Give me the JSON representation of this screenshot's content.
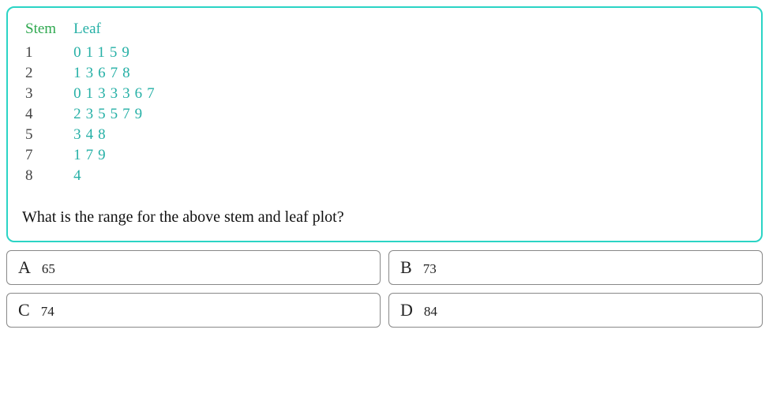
{
  "panel": {
    "border_color": "#2bd4c5"
  },
  "stemleaf": {
    "header": {
      "stem": "Stem",
      "leaf": "Leaf"
    },
    "header_color_stem": "#2ea84f",
    "header_color_leaf": "#26b0a6",
    "stem_color": "#444444",
    "leaf_color": "#26b0a6",
    "font_size": 19,
    "rows": [
      {
        "stem": "1",
        "leaf": "0 1 1 5 9"
      },
      {
        "stem": "2",
        "leaf": "1 3 6 7 8"
      },
      {
        "stem": "3",
        "leaf": "0 1 3 3 3 6 7"
      },
      {
        "stem": "4",
        "leaf": "2 3 5 5 7 9"
      },
      {
        "stem": "5",
        "leaf": "3 4 8"
      },
      {
        "stem": "7",
        "leaf": "1 7 9"
      },
      {
        "stem": "8",
        "leaf": "4"
      }
    ]
  },
  "question": "What is the range for the above stem and leaf plot?",
  "options": [
    {
      "letter": "A",
      "value": "65"
    },
    {
      "letter": "B",
      "value": "73"
    },
    {
      "letter": "C",
      "value": "74"
    },
    {
      "letter": "D",
      "value": "84"
    }
  ],
  "option_style": {
    "border_color": "#888888",
    "letter_fontsize": 22,
    "value_fontsize": 17
  }
}
